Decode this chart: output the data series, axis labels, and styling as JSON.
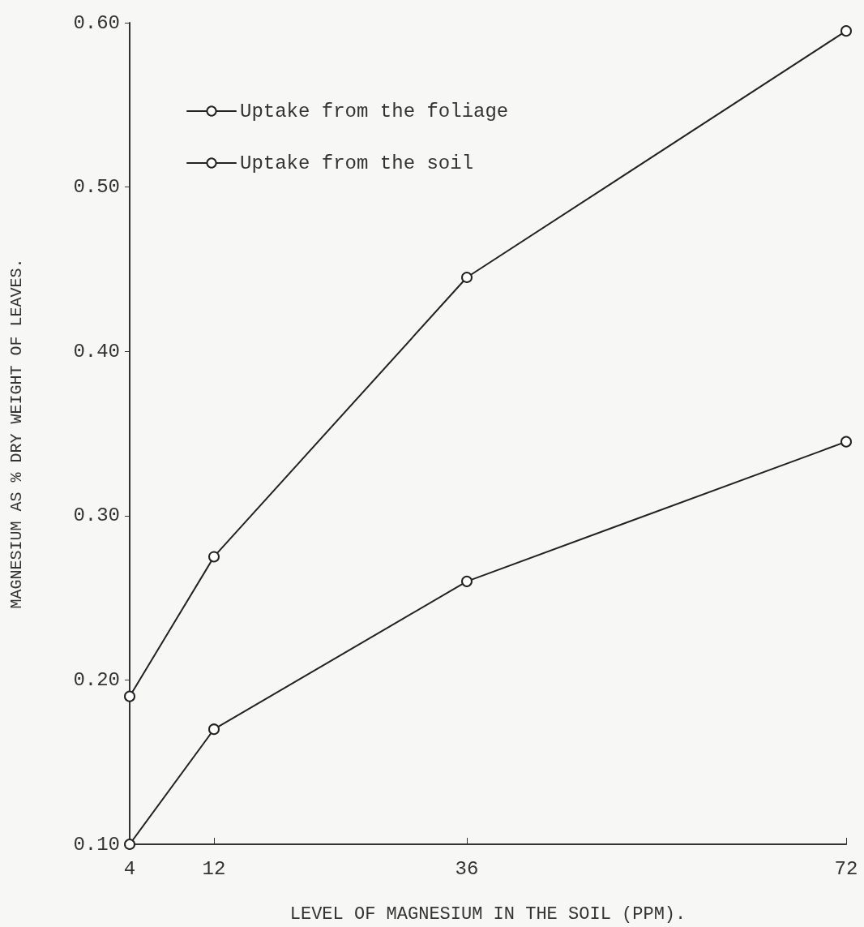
{
  "chart_data": {
    "type": "line",
    "xlabel": "LEVEL OF MAGNESIUM IN THE SOIL (PPM).",
    "ylabel": "MAGNESIUM AS % DRY WEIGHT OF LEAVES.",
    "x": [
      4,
      12,
      36,
      72
    ],
    "series": [
      {
        "name": "Uptake from the foliage",
        "color": "#222222",
        "values": [
          0.19,
          0.275,
          0.445,
          0.595
        ]
      },
      {
        "name": "Uptake from the soil",
        "color": "#222222",
        "values": [
          0.1,
          0.17,
          0.26,
          0.345
        ]
      }
    ],
    "xlim": [
      4,
      72
    ],
    "xticks": [
      4,
      12,
      36,
      72
    ],
    "ylim": [
      0.1,
      0.6
    ],
    "yticks": [
      {
        "value": 0.1,
        "label": "0.10"
      },
      {
        "value": 0.2,
        "label": "0.20"
      },
      {
        "value": 0.3,
        "label": "0.30"
      },
      {
        "value": 0.4,
        "label": "0.40"
      },
      {
        "value": 0.5,
        "label": "0.50"
      },
      {
        "value": 0.6,
        "label": "0.60"
      }
    ],
    "legend": "top left",
    "marker": "circle",
    "line_style": "solid",
    "grid": false
  }
}
